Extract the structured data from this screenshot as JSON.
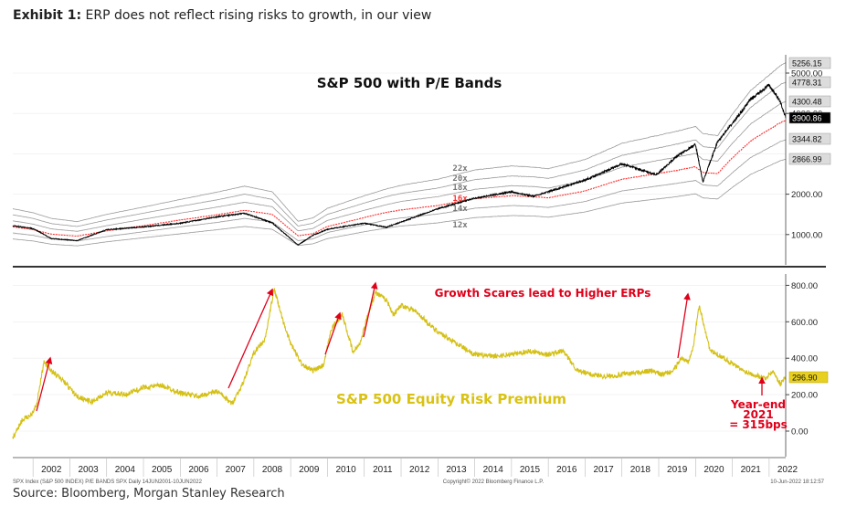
{
  "header": {
    "exhibit_label": "Exhibit 1:",
    "exhibit_title": "ERP does not reflect rising risks to growth, in our view"
  },
  "footer": {
    "source": "Source: Bloomberg, Morgan Stanley Research",
    "left_note": "SPX Index (S&P 500 INDEX) P/E BANDS SPX  Daily 14JUN2001-10JUN2022",
    "center_note": "Copyright© 2022 Bloomberg Finance L.P.",
    "right_note": "10-Jun-2022 18:12:57"
  },
  "annotations": {
    "growth_scares": "Growth Scares lead to Higher ERPs",
    "year_end_1": "Year-end",
    "year_end_2": "2021",
    "year_end_3": "= 315bps"
  },
  "colors": {
    "spx": "#000000",
    "band16": "#ff3030",
    "bands": "#9a9a9a",
    "erp": "#d4c014",
    "arrow": "#e0001a"
  },
  "chart_data": [
    {
      "type": "line",
      "title": "S&P 500 with P/E Bands",
      "x": [
        2001.45,
        2002.0,
        2002.5,
        2003.2,
        2004.0,
        2005.0,
        2006.0,
        2007.0,
        2007.75,
        2008.5,
        2009.2,
        2009.6,
        2010.0,
        2011.0,
        2011.6,
        2012.0,
        2013.0,
        2014.0,
        2015.0,
        2015.6,
        2016.0,
        2017.0,
        2018.0,
        2018.95,
        2019.5,
        2020.0,
        2020.2,
        2020.6,
        2021.0,
        2021.5,
        2022.0,
        2022.3,
        2022.45
      ],
      "series": [
        {
          "name": "S&P 500",
          "values": [
            1220,
            1150,
            900,
            850,
            1120,
            1190,
            1280,
            1440,
            1530,
            1290,
            740,
            980,
            1130,
            1280,
            1180,
            1310,
            1640,
            1900,
            2060,
            1950,
            2060,
            2350,
            2750,
            2480,
            2950,
            3230,
            2300,
            3300,
            3750,
            4350,
            4700,
            4300,
            3900
          ]
        }
      ],
      "bands": [
        {
          "name": "22x",
          "values": [
            1640,
            1540,
            1400,
            1320,
            1500,
            1680,
            1870,
            2050,
            2200,
            2060,
            1330,
            1410,
            1650,
            1960,
            2130,
            2220,
            2370,
            2600,
            2700,
            2670,
            2630,
            2860,
            3260,
            3450,
            3560,
            3680,
            3500,
            3450,
            3980,
            4570,
            4950,
            5180,
            5256.15
          ]
        },
        {
          "name": "20x",
          "values": [
            1490,
            1400,
            1270,
            1200,
            1360,
            1530,
            1700,
            1860,
            2000,
            1870,
            1210,
            1280,
            1500,
            1780,
            1940,
            2020,
            2150,
            2360,
            2450,
            2430,
            2390,
            2600,
            2960,
            3140,
            3240,
            3350,
            3180,
            3140,
            3620,
            4150,
            4500,
            4710,
            4778.31
          ]
        },
        {
          "name": "18x",
          "values": [
            1340,
            1260,
            1140,
            1080,
            1220,
            1380,
            1530,
            1680,
            1800,
            1690,
            1090,
            1150,
            1350,
            1600,
            1740,
            1820,
            1940,
            2120,
            2210,
            2190,
            2150,
            2340,
            2670,
            2830,
            2920,
            3010,
            2860,
            2820,
            3260,
            3740,
            4050,
            4240,
            4300.48
          ]
        },
        {
          "name": "16x",
          "values": [
            1190,
            1120,
            1010,
            960,
            1090,
            1220,
            1360,
            1490,
            1600,
            1500,
            970,
            1020,
            1200,
            1420,
            1550,
            1610,
            1720,
            1890,
            1960,
            1940,
            1910,
            2080,
            2370,
            2510,
            2590,
            2680,
            2540,
            2510,
            2900,
            3320,
            3600,
            3770,
            3822.44
          ]
        },
        {
          "name": "14x",
          "values": [
            1040,
            980,
            890,
            840,
            950,
            1070,
            1190,
            1300,
            1400,
            1310,
            850,
            890,
            1050,
            1240,
            1360,
            1410,
            1510,
            1650,
            1720,
            1700,
            1670,
            1820,
            2080,
            2200,
            2270,
            2340,
            2230,
            2200,
            2530,
            2910,
            3150,
            3300,
            3344.82
          ]
        },
        {
          "name": "12x",
          "values": [
            890,
            840,
            760,
            720,
            820,
            920,
            1020,
            1120,
            1200,
            1130,
            730,
            770,
            900,
            1070,
            1160,
            1210,
            1290,
            1420,
            1470,
            1460,
            1430,
            1560,
            1780,
            1880,
            1940,
            2010,
            1910,
            1880,
            2170,
            2490,
            2700,
            2830,
            2866.99
          ]
        }
      ],
      "yticks": [
        "1000.00",
        "2000.00",
        "4000.00",
        "5000.00"
      ],
      "last_values": [
        "5256.15",
        "4778.31",
        "4300.48",
        "3900.86",
        "3344.82",
        "2866.99"
      ],
      "xlabels": [
        "2002",
        "2003",
        "2004",
        "2005",
        "2006",
        "2007",
        "2008",
        "2009",
        "2010",
        "2011",
        "2012",
        "2013",
        "2014",
        "2015",
        "2016",
        "2017",
        "2018",
        "2019",
        "2020",
        "2021",
        "2022"
      ]
    },
    {
      "type": "line",
      "title": "S&P 500 Equity Risk Premium",
      "x": [
        2001.45,
        2001.7,
        2001.95,
        2002.1,
        2002.3,
        2002.5,
        2002.8,
        2003.2,
        2003.6,
        2004.0,
        2004.5,
        2005.0,
        2005.5,
        2006.0,
        2006.5,
        2007.0,
        2007.4,
        2007.7,
        2008.0,
        2008.3,
        2008.55,
        2008.8,
        2009.0,
        2009.3,
        2009.6,
        2009.9,
        2010.1,
        2010.4,
        2010.7,
        2010.9,
        2011.1,
        2011.3,
        2011.6,
        2011.8,
        2012.0,
        2012.3,
        2012.6,
        2012.9,
        2013.2,
        2013.6,
        2014.0,
        2014.5,
        2015.0,
        2015.5,
        2016.0,
        2016.4,
        2016.8,
        2017.2,
        2017.6,
        2018.0,
        2018.4,
        2018.8,
        2019.1,
        2019.4,
        2019.6,
        2019.8,
        2019.95,
        2020.1,
        2020.4,
        2020.7,
        2021.0,
        2021.3,
        2021.6,
        2021.9,
        2022.1,
        2022.3,
        2022.45
      ],
      "series": [
        {
          "name": "ERP",
          "values": [
            -40,
            60,
            90,
            150,
            380,
            330,
            280,
            190,
            160,
            210,
            200,
            240,
            250,
            210,
            190,
            220,
            150,
            260,
            430,
            500,
            780,
            600,
            480,
            370,
            330,
            360,
            560,
            640,
            430,
            490,
            640,
            760,
            720,
            640,
            690,
            670,
            620,
            560,
            520,
            470,
            420,
            410,
            420,
            440,
            420,
            440,
            330,
            310,
            300,
            310,
            320,
            330,
            310,
            330,
            400,
            380,
            480,
            690,
            440,
            410,
            370,
            330,
            310,
            290,
            330,
            260,
            296.9
          ]
        }
      ],
      "yticks": [
        "0.00",
        "200.00",
        "400.00",
        "600.00",
        "800.00"
      ],
      "last_value": "296.90",
      "xlabels": [
        "2002",
        "2003",
        "2004",
        "2005",
        "2006",
        "2007",
        "2008",
        "2009",
        "2010",
        "2011",
        "2012",
        "2013",
        "2014",
        "2015",
        "2016",
        "2017",
        "2018",
        "2019",
        "2020",
        "2021",
        "2022"
      ]
    }
  ]
}
